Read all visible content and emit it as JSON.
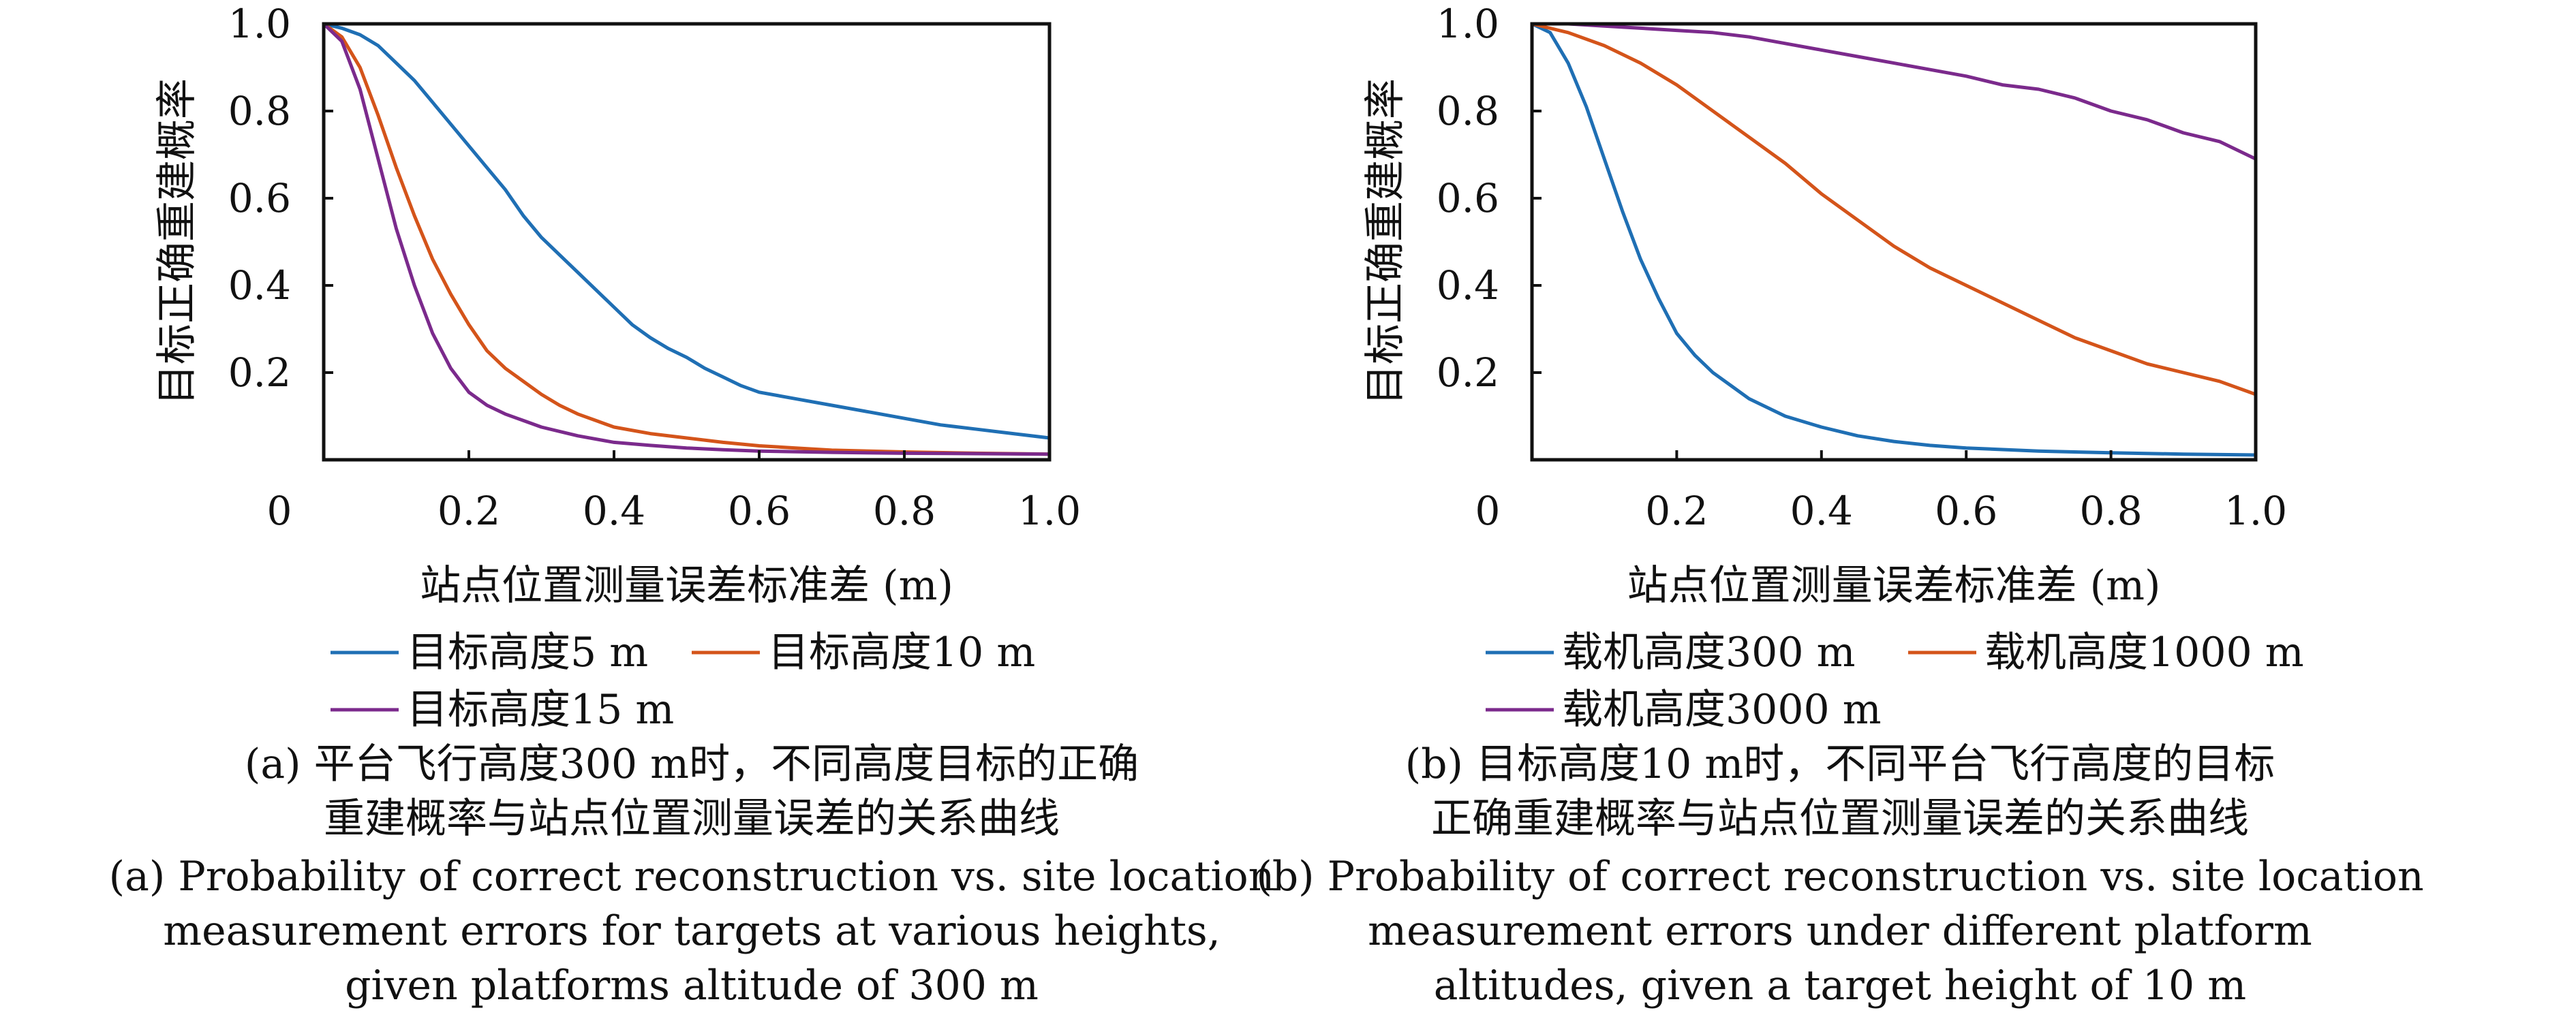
{
  "chart_data": [
    {
      "type": "line",
      "xlabel": "站点位置测量误差标准差 (m)",
      "ylabel": "目标正确重建概率",
      "xlim": [
        0,
        1.0
      ],
      "ylim": [
        0,
        1.0
      ],
      "x_ticks": [
        "0",
        "0.2",
        "0.4",
        "0.6",
        "0.8",
        "1.0"
      ],
      "y_ticks": [
        "0.2",
        "0.4",
        "0.6",
        "0.8",
        "1.0"
      ],
      "grid": false,
      "legend_position": "bottom",
      "series": [
        {
          "name": "目标高度5 m",
          "color": "#1f6fb4",
          "x": [
            0,
            0.025,
            0.05,
            0.075,
            0.1,
            0.125,
            0.15,
            0.175,
            0.2,
            0.225,
            0.25,
            0.275,
            0.3,
            0.325,
            0.35,
            0.375,
            0.4,
            0.425,
            0.45,
            0.475,
            0.5,
            0.525,
            0.55,
            0.575,
            0.6,
            0.65,
            0.7,
            0.75,
            0.8,
            0.85,
            0.9,
            0.95,
            1.0
          ],
          "y": [
            1.0,
            0.99,
            0.975,
            0.95,
            0.91,
            0.87,
            0.82,
            0.77,
            0.72,
            0.67,
            0.62,
            0.56,
            0.51,
            0.47,
            0.43,
            0.39,
            0.35,
            0.31,
            0.28,
            0.255,
            0.235,
            0.21,
            0.19,
            0.17,
            0.155,
            0.14,
            0.125,
            0.11,
            0.095,
            0.08,
            0.07,
            0.06,
            0.05
          ]
        },
        {
          "name": "目标高度10 m",
          "color": "#d4541a",
          "x": [
            0,
            0.025,
            0.05,
            0.075,
            0.1,
            0.125,
            0.15,
            0.175,
            0.2,
            0.225,
            0.25,
            0.275,
            0.3,
            0.325,
            0.35,
            0.375,
            0.4,
            0.45,
            0.5,
            0.55,
            0.6,
            0.65,
            0.7,
            0.8,
            0.9,
            1.0
          ],
          "y": [
            1.0,
            0.97,
            0.9,
            0.79,
            0.67,
            0.56,
            0.46,
            0.38,
            0.31,
            0.25,
            0.21,
            0.18,
            0.15,
            0.125,
            0.105,
            0.09,
            0.075,
            0.06,
            0.05,
            0.04,
            0.032,
            0.027,
            0.022,
            0.018,
            0.015,
            0.013
          ]
        },
        {
          "name": "目标高度15 m",
          "color": "#7b2a8c",
          "x": [
            0,
            0.025,
            0.05,
            0.075,
            0.1,
            0.125,
            0.15,
            0.175,
            0.2,
            0.225,
            0.25,
            0.275,
            0.3,
            0.35,
            0.4,
            0.45,
            0.5,
            0.55,
            0.6,
            0.7,
            0.8,
            0.9,
            1.0
          ],
          "y": [
            1.0,
            0.96,
            0.85,
            0.69,
            0.53,
            0.4,
            0.29,
            0.21,
            0.155,
            0.125,
            0.105,
            0.09,
            0.075,
            0.055,
            0.04,
            0.033,
            0.027,
            0.023,
            0.02,
            0.017,
            0.015,
            0.014,
            0.013
          ]
        }
      ],
      "caption_zh": [
        "(a) 平台飞行高度300 m时，不同高度目标的正确",
        "重建概率与站点位置测量误差的关系曲线"
      ],
      "caption_en": [
        "(a) Probability of correct reconstruction vs. site location",
        "measurement errors for targets at various heights,",
        "given  platforms altitude of 300 m"
      ]
    },
    {
      "type": "line",
      "xlabel": "站点位置测量误差标准差 (m)",
      "ylabel": "目标正确重建概率",
      "xlim": [
        0,
        1.0
      ],
      "ylim": [
        0,
        1.0
      ],
      "x_ticks": [
        "0",
        "0.2",
        "0.4",
        "0.6",
        "0.8",
        "1.0"
      ],
      "y_ticks": [
        "0.2",
        "0.4",
        "0.6",
        "0.8",
        "1.0"
      ],
      "grid": false,
      "legend_position": "bottom",
      "series": [
        {
          "name": "载机高度300 m",
          "color": "#1f6fb4",
          "x": [
            0,
            0.025,
            0.05,
            0.075,
            0.1,
            0.125,
            0.15,
            0.175,
            0.2,
            0.225,
            0.25,
            0.275,
            0.3,
            0.35,
            0.4,
            0.45,
            0.5,
            0.55,
            0.6,
            0.7,
            0.8,
            0.9,
            1.0
          ],
          "y": [
            1.0,
            0.98,
            0.91,
            0.81,
            0.69,
            0.57,
            0.46,
            0.37,
            0.29,
            0.24,
            0.2,
            0.17,
            0.14,
            0.1,
            0.075,
            0.055,
            0.042,
            0.033,
            0.027,
            0.02,
            0.016,
            0.013,
            0.011
          ]
        },
        {
          "name": "载机高度1000 m",
          "color": "#d4541a",
          "x": [
            0,
            0.05,
            0.1,
            0.15,
            0.2,
            0.25,
            0.3,
            0.35,
            0.4,
            0.45,
            0.5,
            0.55,
            0.6,
            0.65,
            0.7,
            0.75,
            0.8,
            0.85,
            0.9,
            0.95,
            1.0
          ],
          "y": [
            1.0,
            0.98,
            0.95,
            0.91,
            0.86,
            0.8,
            0.74,
            0.68,
            0.61,
            0.55,
            0.49,
            0.44,
            0.4,
            0.36,
            0.32,
            0.28,
            0.25,
            0.22,
            0.2,
            0.18,
            0.15
          ]
        },
        {
          "name": "载机高度3000 m",
          "color": "#7b2a8c",
          "x": [
            0,
            0.05,
            0.1,
            0.15,
            0.2,
            0.25,
            0.3,
            0.35,
            0.4,
            0.45,
            0.5,
            0.55,
            0.6,
            0.65,
            0.7,
            0.75,
            0.8,
            0.85,
            0.9,
            0.95,
            1.0
          ],
          "y": [
            1.0,
            1.0,
            0.995,
            0.99,
            0.985,
            0.98,
            0.97,
            0.955,
            0.94,
            0.925,
            0.91,
            0.895,
            0.88,
            0.86,
            0.85,
            0.83,
            0.8,
            0.78,
            0.75,
            0.73,
            0.69
          ]
        }
      ],
      "caption_zh": [
        "(b) 目标高度10 m时，不同平台飞行高度的目标",
        "正确重建概率与站点位置测量误差的关系曲线"
      ],
      "caption_en": [
        "(b) Probability of correct reconstruction vs. site location",
        "measurement errors under different platform",
        "altitudes, given a target height of 10 m"
      ]
    }
  ]
}
